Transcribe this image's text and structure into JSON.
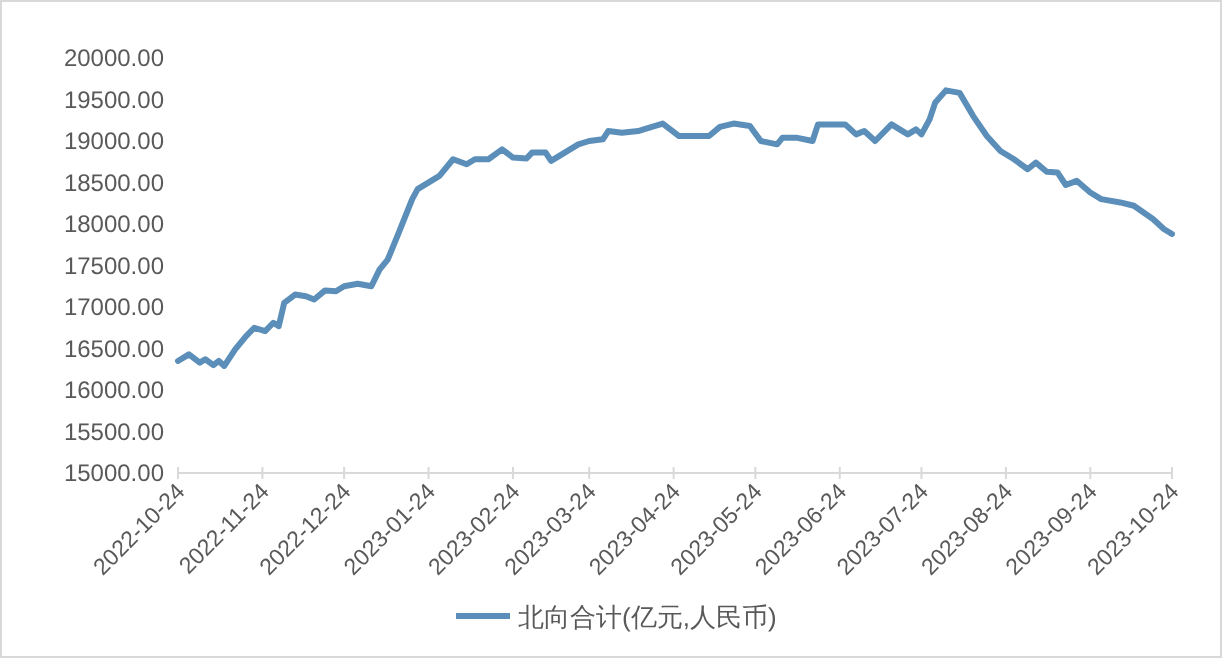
{
  "chart_data": {
    "type": "line",
    "x": [
      "2022-10-24",
      "2022-10-28",
      "2022-11-01",
      "2022-11-03",
      "2022-11-06",
      "2022-11-08",
      "2022-11-10",
      "2022-11-14",
      "2022-11-18",
      "2022-11-21",
      "2022-11-25",
      "2022-11-28",
      "2022-11-30",
      "2022-12-02",
      "2022-12-06",
      "2022-12-10",
      "2022-12-13",
      "2022-12-17",
      "2022-12-21",
      "2022-12-24",
      "2022-12-29",
      "2023-01-03",
      "2023-01-06",
      "2023-01-09",
      "2023-01-13",
      "2023-01-18",
      "2023-01-20",
      "2023-01-28",
      "2023-02-02",
      "2023-02-07",
      "2023-02-10",
      "2023-02-15",
      "2023-02-20",
      "2023-02-24",
      "2023-03-01",
      "2023-03-03",
      "2023-03-08",
      "2023-03-10",
      "2023-03-15",
      "2023-03-20",
      "2023-03-24",
      "2023-03-29",
      "2023-03-31",
      "2023-04-05",
      "2023-04-11",
      "2023-04-13",
      "2023-04-20",
      "2023-04-26",
      "2023-05-07",
      "2023-05-11",
      "2023-05-16",
      "2023-05-22",
      "2023-05-26",
      "2023-06-01",
      "2023-06-03",
      "2023-06-08",
      "2023-06-14",
      "2023-06-16",
      "2023-06-26",
      "2023-06-30",
      "2023-07-03",
      "2023-07-07",
      "2023-07-13",
      "2023-07-19",
      "2023-07-22",
      "2023-07-24",
      "2023-07-27",
      "2023-07-29",
      "2023-08-02",
      "2023-08-07",
      "2023-08-12",
      "2023-08-17",
      "2023-08-22",
      "2023-08-27",
      "2023-09-01",
      "2023-09-04",
      "2023-09-08",
      "2023-09-12",
      "2023-09-15",
      "2023-09-19",
      "2023-09-24",
      "2023-09-28",
      "2023-10-05",
      "2023-10-10",
      "2023-10-17",
      "2023-10-21",
      "2023-10-24"
    ],
    "series": [
      {
        "name": "北向合计(亿元,人民币)",
        "color": "#5b8fb9",
        "values": [
          16350,
          16430,
          16330,
          16370,
          16300,
          16350,
          16290,
          16490,
          16650,
          16750,
          16710,
          16810,
          16770,
          17050,
          17150,
          17130,
          17090,
          17200,
          17190,
          17250,
          17280,
          17250,
          17450,
          17570,
          17890,
          18300,
          18420,
          18580,
          18780,
          18720,
          18780,
          18780,
          18900,
          18800,
          18790,
          18860,
          18860,
          18760,
          18860,
          18960,
          19000,
          19020,
          19120,
          19100,
          19120,
          19140,
          19210,
          19060,
          19060,
          19170,
          19210,
          19180,
          19000,
          18960,
          19040,
          19040,
          19000,
          19200,
          19200,
          19080,
          19120,
          19000,
          19200,
          19080,
          19140,
          19080,
          19260,
          19460,
          19610,
          19580,
          19300,
          19060,
          18880,
          18780,
          18660,
          18740,
          18630,
          18620,
          18470,
          18520,
          18380,
          18300,
          18260,
          18220,
          18060,
          17940,
          17880
        ]
      }
    ],
    "xlim": [
      "2022-10-24",
      "2023-10-24"
    ],
    "xticks": [
      "2022-10-24",
      "2022-11-24",
      "2022-12-24",
      "2023-01-24",
      "2023-02-24",
      "2023-03-24",
      "2023-04-24",
      "2023-05-24",
      "2023-06-24",
      "2023-07-24",
      "2023-08-24",
      "2023-09-24",
      "2023-10-24"
    ],
    "ylim": [
      15000,
      20000
    ],
    "yticks": [
      {
        "value": 15000,
        "label": "15000.00"
      },
      {
        "value": 15500,
        "label": "15500.00"
      },
      {
        "value": 16000,
        "label": "16000.00"
      },
      {
        "value": 16500,
        "label": "16500.00"
      },
      {
        "value": 17000,
        "label": "17000.00"
      },
      {
        "value": 17500,
        "label": "17500.00"
      },
      {
        "value": 18000,
        "label": "18000.00"
      },
      {
        "value": 18500,
        "label": "18500.00"
      },
      {
        "value": 19000,
        "label": "19000.00"
      },
      {
        "value": 19500,
        "label": "19500.00"
      },
      {
        "value": 20000,
        "label": "20000.00"
      }
    ],
    "grid": false,
    "legend": "bottom"
  }
}
